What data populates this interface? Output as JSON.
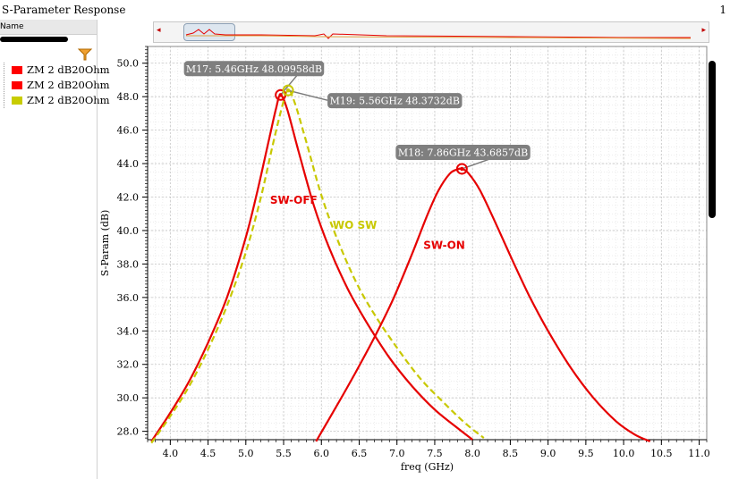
{
  "window": {
    "title": "S-Parameter Response",
    "page_number": "1"
  },
  "legend": {
    "header": "Name",
    "items": [
      {
        "label": "ZM 2 dB20Ohm",
        "color": "#ff0000"
      },
      {
        "label": "ZM 2 dB20Ohm",
        "color": "#ff0000"
      },
      {
        "label": "ZM 2 dB20Ohm",
        "color": "#c8cc00"
      }
    ],
    "filter_icon": "filter-icon"
  },
  "overview": {
    "left_arrow": "◂",
    "right_arrow": "▸"
  },
  "chart_data": {
    "type": "line",
    "xlabel": "freq (GHz)",
    "ylabel": "S-Param (dB)",
    "xlim": [
      3.7,
      11.1
    ],
    "ylim": [
      27.5,
      51.0
    ],
    "xticks": [
      "4.0",
      "4.5",
      "5.0",
      "5.5",
      "6.0",
      "6.5",
      "7.0",
      "7.5",
      "8.0",
      "8.5",
      "9.0",
      "9.5",
      "10.0",
      "10.5",
      "11.0"
    ],
    "yticks": [
      "28.0",
      "30.0",
      "32.0",
      "34.0",
      "36.0",
      "38.0",
      "40.0",
      "42.0",
      "44.0",
      "46.0",
      "48.0",
      "50.0"
    ],
    "grid": true,
    "series": [
      {
        "name": "SW-OFF",
        "color": "#e60000",
        "dash": false,
        "x": [
          3.75,
          4.0,
          4.25,
          4.5,
          4.75,
          5.0,
          5.15,
          5.3,
          5.4,
          5.46,
          5.55,
          5.7,
          5.9,
          6.1,
          6.35,
          6.6,
          6.9,
          7.2,
          7.5,
          7.8,
          8.0
        ],
        "y": [
          27.4,
          29.1,
          31.0,
          33.3,
          36.0,
          39.6,
          42.3,
          45.3,
          47.3,
          48.1,
          47.2,
          44.7,
          41.5,
          39.0,
          36.5,
          34.5,
          32.4,
          30.7,
          29.3,
          28.2,
          27.5
        ]
      },
      {
        "name": "WO SW",
        "color": "#c8c800",
        "dash": true,
        "x": [
          3.75,
          4.0,
          4.25,
          4.5,
          4.75,
          5.0,
          5.2,
          5.35,
          5.48,
          5.56,
          5.65,
          5.8,
          6.0,
          6.2,
          6.45,
          6.7,
          7.0,
          7.3,
          7.6,
          7.9,
          8.15
        ],
        "y": [
          27.3,
          28.9,
          30.7,
          32.9,
          35.5,
          38.7,
          42.0,
          45.0,
          47.4,
          48.4,
          47.6,
          45.3,
          42.1,
          39.6,
          37.0,
          35.0,
          33.0,
          31.2,
          29.8,
          28.5,
          27.6
        ]
      },
      {
        "name": "SW-ON",
        "color": "#e60000",
        "dash": false,
        "x": [
          5.93,
          6.2,
          6.45,
          6.7,
          6.95,
          7.2,
          7.4,
          7.55,
          7.7,
          7.8,
          7.86,
          7.95,
          8.1,
          8.3,
          8.5,
          8.75,
          9.0,
          9.3,
          9.6,
          9.9,
          10.15,
          10.35
        ],
        "y": [
          27.4,
          29.5,
          31.5,
          33.6,
          35.9,
          38.6,
          40.9,
          42.4,
          43.4,
          43.65,
          43.69,
          43.4,
          42.4,
          40.5,
          38.5,
          36.1,
          34.0,
          31.8,
          30.0,
          28.6,
          27.8,
          27.4
        ]
      }
    ],
    "markers": [
      {
        "name": "M17",
        "x": 5.46,
        "y": 48.09958,
        "color": "#e60000",
        "label": "M17: 5.46GHz 48.09958dB"
      },
      {
        "name": "M19",
        "x": 5.56,
        "y": 48.3732,
        "color": "#c8c800",
        "label": "M19: 5.56GHz 48.3732dB"
      },
      {
        "name": "M18",
        "x": 7.86,
        "y": 43.6857,
        "color": "#e60000",
        "label": "M18: 7.86GHz 43.6857dB"
      }
    ],
    "annotations": [
      {
        "text": "SW-OFF",
        "x": 5.32,
        "y": 41.6,
        "color": "#e60000"
      },
      {
        "text": "WO SW",
        "x": 6.15,
        "y": 40.1,
        "color": "#c8c800"
      },
      {
        "text": "SW-ON",
        "x": 7.35,
        "y": 38.9,
        "color": "#e60000"
      }
    ]
  }
}
